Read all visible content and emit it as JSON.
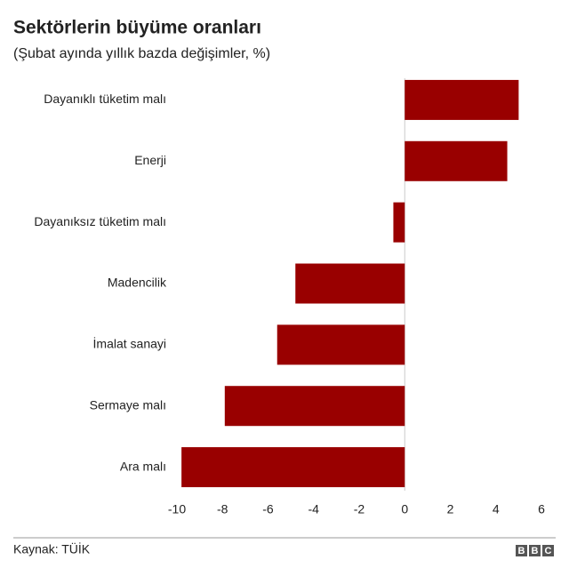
{
  "chart_data": {
    "type": "barh",
    "title": "Sektörlerin büyüme oranları",
    "subtitle": "(Şubat ayında yıllık bazda değişimler, %)",
    "categories": [
      "Dayanıklı tüketim malı",
      "Enerji",
      "Dayanıksız tüketim malı",
      "Madencilik",
      "İmalat sanayi",
      "Sermaye malı",
      "Ara malı"
    ],
    "values": [
      5.0,
      4.5,
      -0.5,
      -4.8,
      -5.6,
      -7.9,
      -9.8
    ],
    "color": "#990000",
    "xlim": [
      -10,
      6
    ],
    "xticks": [
      -10,
      -8,
      -6,
      -4,
      -2,
      0,
      2,
      4,
      6
    ],
    "zero_line": true
  },
  "footer": {
    "source": "Kaynak: TÜİK",
    "logo": [
      "B",
      "B",
      "C"
    ]
  }
}
